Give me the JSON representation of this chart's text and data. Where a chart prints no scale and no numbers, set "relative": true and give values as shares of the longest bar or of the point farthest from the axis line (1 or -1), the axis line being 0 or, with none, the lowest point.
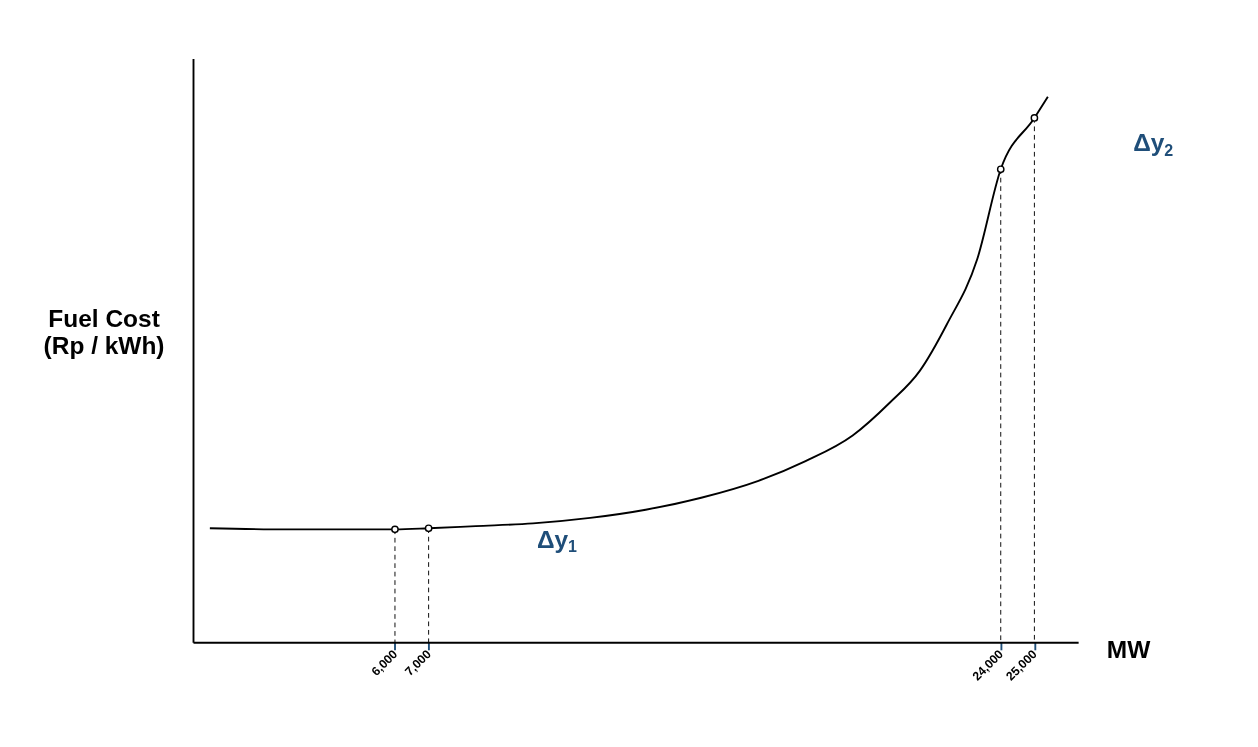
{
  "chart_data": {
    "type": "line",
    "relative": true,
    "xlabel": "MW",
    "ylabel": "Fuel Cost\n(Rp / kWh)",
    "xlim": [
      0,
      26300
    ],
    "xticks": [
      {
        "value": 6000,
        "label": "6,000"
      },
      {
        "value": 7000,
        "label": "7,000"
      },
      {
        "value": 24000,
        "label": "24,000"
      },
      {
        "value": 25000,
        "label": "25,000"
      }
    ],
    "series": [
      {
        "color": "#000000",
        "marker": "none",
        "line_style": "solid",
        "x": [
          500,
          2800,
          6000,
          7000,
          8400,
          10100,
          11800,
          13450,
          15100,
          16800,
          18200,
          19600,
          20700,
          21600,
          22400,
          23300,
          24000,
          25000,
          25400
        ],
        "values": [
          0.209,
          0.207,
          0.207,
          0.209,
          0.213,
          0.218,
          0.228,
          0.243,
          0.265,
          0.296,
          0.332,
          0.379,
          0.439,
          0.498,
          0.583,
          0.702,
          0.867,
          0.961,
          1.0
        ]
      },
      {
        "type": "lollipop",
        "color": "#000000",
        "marker": "circle",
        "line_style": "dashed",
        "x": [
          6000,
          7000,
          24000,
          25000
        ],
        "values": [
          0.207,
          0.209,
          0.867,
          0.961
        ]
      }
    ],
    "annotations": [
      "Δy$_{1}$",
      "Δy$_{2}$"
    ]
  }
}
